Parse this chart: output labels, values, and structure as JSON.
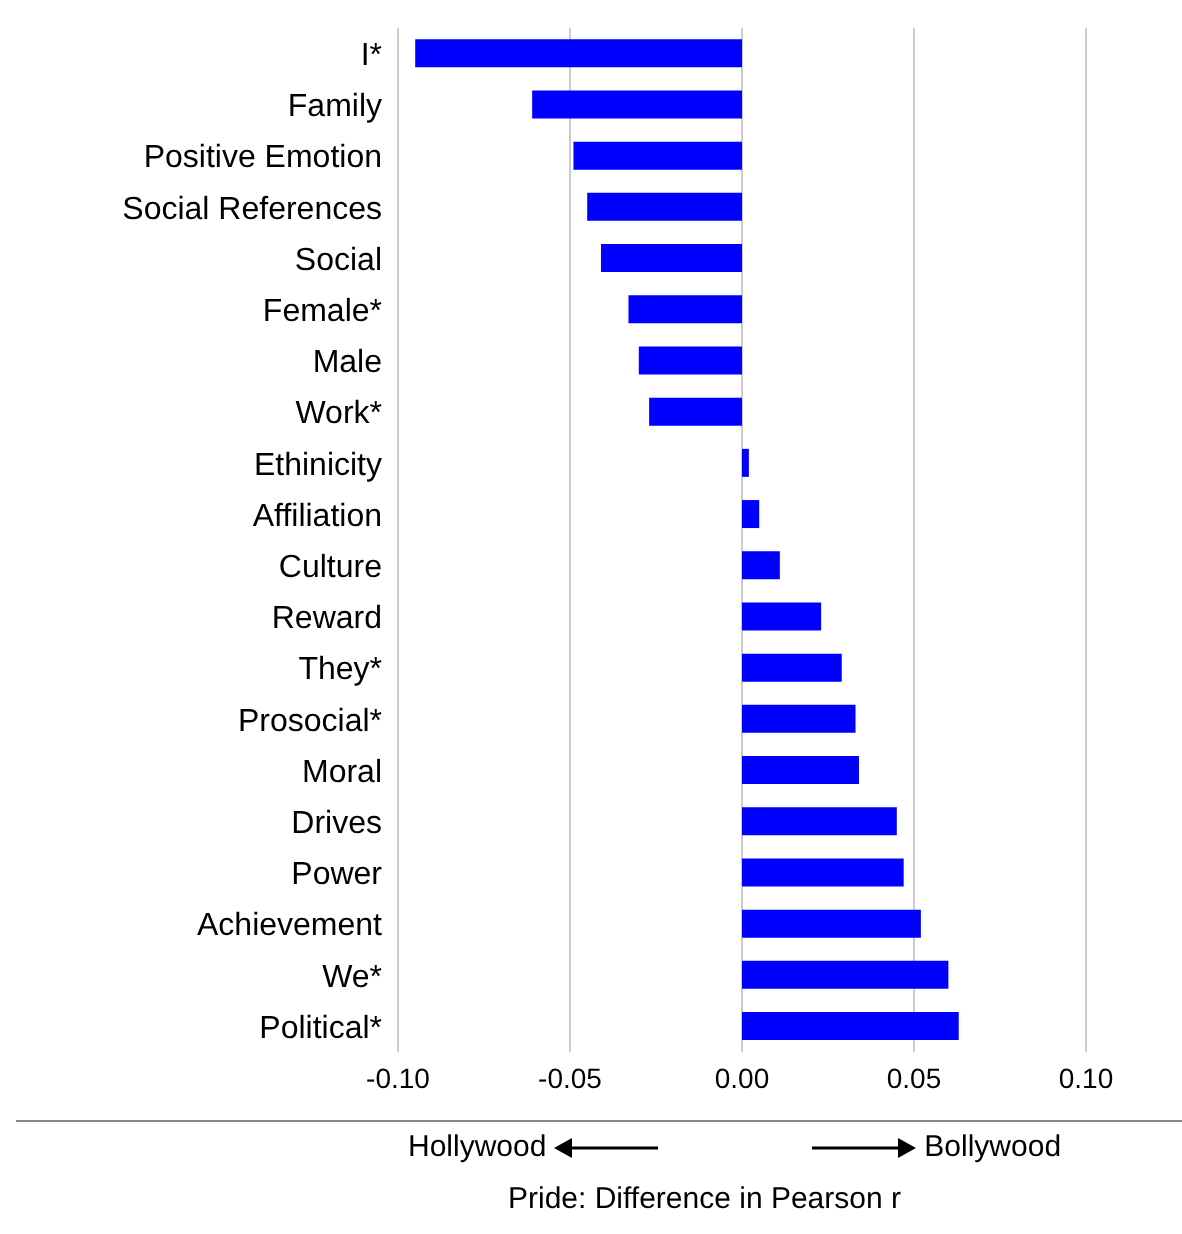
{
  "chart_data": {
    "type": "bar",
    "orientation": "horizontal",
    "xlabel": "Pride: Difference in Pearson r",
    "categories": [
      "I*",
      "Family",
      "Positive Emotion",
      "Social References",
      "Social",
      "Female*",
      "Male",
      "Work*",
      "Ethinicity",
      "Affiliation",
      "Culture",
      "Reward",
      "They*",
      "Prosocial*",
      "Moral",
      "Drives",
      "Power",
      "Achievement",
      "We*",
      "Political*"
    ],
    "values": [
      -0.095,
      -0.061,
      -0.049,
      -0.045,
      -0.041,
      -0.033,
      -0.03,
      -0.027,
      0.002,
      0.005,
      0.011,
      0.023,
      0.029,
      0.033,
      0.034,
      0.045,
      0.047,
      0.052,
      0.06,
      0.063
    ],
    "color": "#0000ff",
    "xlim": [
      -0.1,
      0.1
    ],
    "xticks": [
      {
        "value": -0.1,
        "label": "-0.10"
      },
      {
        "value": -0.05,
        "label": "-0.05"
      },
      {
        "value": 0,
        "label": "0.00"
      },
      {
        "value": 0.05,
        "label": "0.05"
      },
      {
        "value": 0.1,
        "label": "0.10"
      }
    ],
    "grid": "x",
    "annotations": [
      "Hollywood",
      "Bollywood"
    ]
  }
}
